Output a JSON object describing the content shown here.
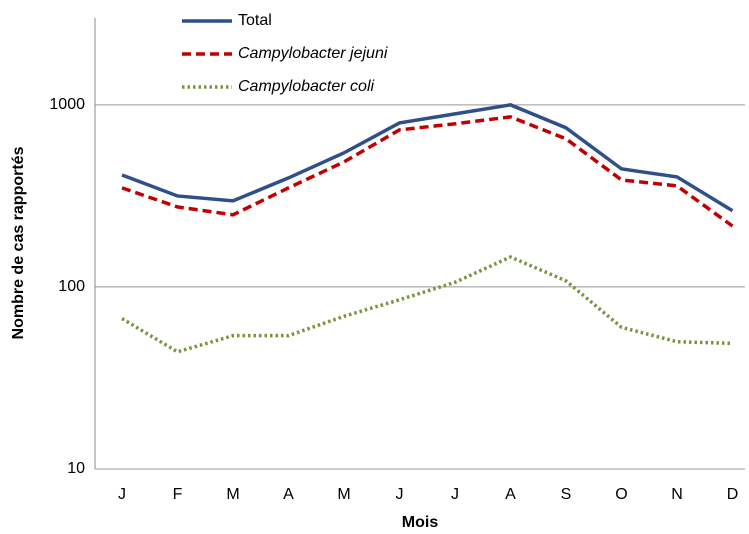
{
  "chart_data": {
    "type": "line",
    "x_label": "Mois",
    "y_label": "Nombre de cas rapportés",
    "categories": [
      "J",
      "F",
      "M",
      "A",
      "M",
      "J",
      "J",
      "A",
      "S",
      "O",
      "N",
      "D"
    ],
    "series": [
      {
        "name": "Total",
        "color": "#2e4f8a",
        "style": "solid",
        "values": [
          412,
          316,
          297,
          397,
          545,
          796,
          892,
          1000,
          748,
          445,
          402,
          262
        ]
      },
      {
        "name": "Campylobacter jejuni",
        "color": "#c00000",
        "style": "dashed",
        "values": [
          350,
          275,
          249,
          350,
          486,
          729,
          787,
          859,
          651,
          387,
          359,
          216
        ]
      },
      {
        "name": "Campylobacter coli",
        "color": "#77933c",
        "style": "dotted",
        "values": [
          67,
          44,
          54,
          54,
          69,
          85,
          106,
          146,
          108,
          60,
          50,
          49
        ]
      }
    ],
    "log_scale": true,
    "ylim": [
      10,
      3000
    ],
    "yticks": [
      10,
      100,
      1000
    ],
    "grid": true
  }
}
